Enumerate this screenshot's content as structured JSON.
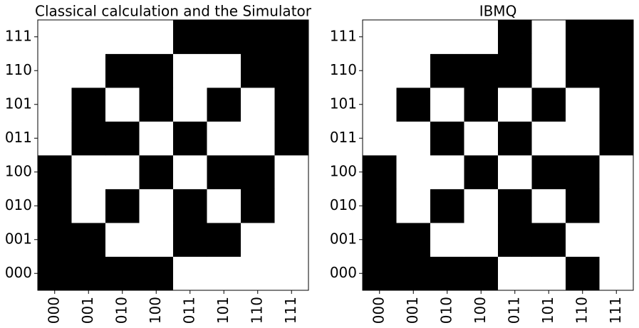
{
  "chart_data": [
    {
      "type": "heatmap",
      "title": "Classical calculation and the Simulator",
      "x": [
        "000",
        "001",
        "010",
        "100",
        "011",
        "101",
        "110",
        "111"
      ],
      "y": [
        "000",
        "001",
        "010",
        "100",
        "011",
        "101",
        "110",
        "111"
      ],
      "colors": [
        "#ffffff",
        "#000000"
      ],
      "values": [
        [
          1,
          1,
          1,
          1,
          0,
          0,
          0,
          0
        ],
        [
          1,
          1,
          0,
          0,
          1,
          1,
          0,
          0
        ],
        [
          1,
          0,
          1,
          0,
          1,
          0,
          1,
          0
        ],
        [
          1,
          0,
          0,
          1,
          0,
          1,
          1,
          0
        ],
        [
          0,
          1,
          1,
          0,
          1,
          0,
          0,
          1
        ],
        [
          0,
          1,
          0,
          1,
          0,
          1,
          0,
          1
        ],
        [
          0,
          0,
          1,
          1,
          0,
          0,
          1,
          1
        ],
        [
          0,
          0,
          0,
          0,
          1,
          1,
          1,
          1
        ]
      ]
    },
    {
      "type": "heatmap",
      "title": "IBMQ",
      "x": [
        "000",
        "001",
        "010",
        "100",
        "011",
        "101",
        "110",
        "111"
      ],
      "y": [
        "000",
        "001",
        "010",
        "100",
        "011",
        "101",
        "110",
        "111"
      ],
      "colors": [
        "#ffffff",
        "#000000"
      ],
      "values": [
        [
          1,
          1,
          1,
          1,
          0,
          0,
          1,
          0
        ],
        [
          1,
          1,
          0,
          0,
          1,
          1,
          0,
          0
        ],
        [
          1,
          0,
          1,
          0,
          1,
          0,
          1,
          0
        ],
        [
          1,
          0,
          0,
          1,
          0,
          1,
          1,
          0
        ],
        [
          0,
          0,
          1,
          0,
          1,
          0,
          0,
          1
        ],
        [
          0,
          1,
          0,
          1,
          0,
          1,
          0,
          1
        ],
        [
          0,
          0,
          1,
          1,
          1,
          0,
          1,
          1
        ],
        [
          0,
          0,
          0,
          0,
          1,
          0,
          1,
          1
        ]
      ]
    }
  ]
}
